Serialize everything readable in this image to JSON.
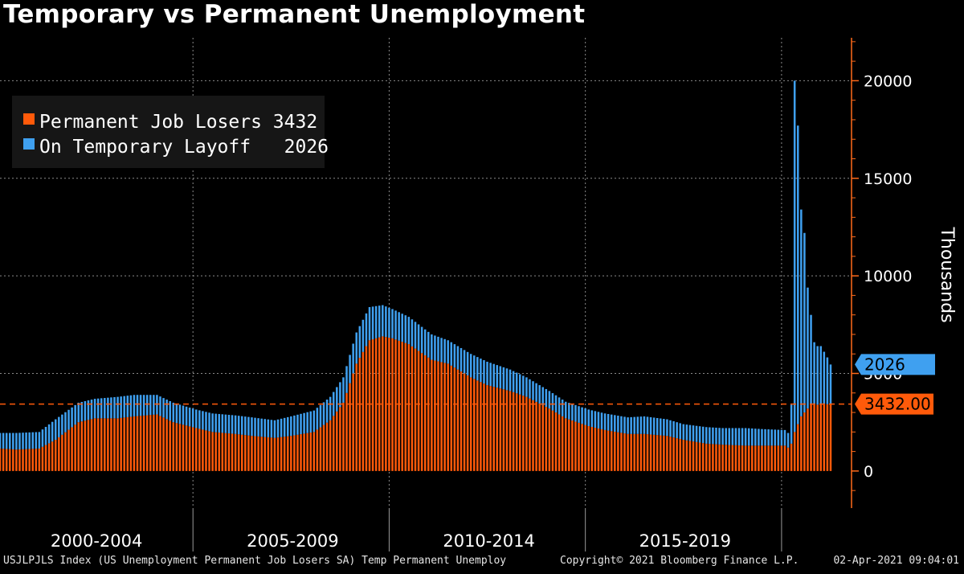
{
  "chart_title": "Temporary vs Permanent Unemployment",
  "footer": {
    "source": "USJLPJLS Index (US Unemployment Permanent Job Losers SA) Temp Permanent Unemploy",
    "copyright": "Copyright© 2021 Bloomberg Finance L.P.",
    "timestamp": "02-Apr-2021 09:04:01"
  },
  "colors": {
    "background": "#000000",
    "permanent": "#ff5a0a",
    "temporary": "#3fa0f0",
    "axis": "#ff6a1a",
    "grid": "#8a8a8a"
  },
  "chart_data": {
    "type": "bar",
    "stacked": true,
    "title": "Temporary vs Permanent Unemployment",
    "ylabel": "Thousands",
    "ylim": [
      -1900,
      22200
    ],
    "yticks": [
      "0",
      "5000",
      "10000",
      "15000",
      "20000"
    ],
    "ytick_values": [
      0,
      5000,
      10000,
      15000,
      20000
    ],
    "grid": true,
    "legend": {
      "position": "top-left",
      "entries": [
        {
          "label": "Permanent Job Losers 3432",
          "color": "#ff5a0a"
        },
        {
          "label": "On Temporary Layoff   2026",
          "color": "#3fa0f0"
        }
      ]
    },
    "x_periods": [
      "2000-2004",
      "2005-2009",
      "2010-2014",
      "2015-2019"
    ],
    "x_start": "2000-01",
    "x_end": "2021-03",
    "last_value_tags": {
      "temporary": "2026",
      "permanent": "3432.00",
      "permanent_reference_line": 3432
    },
    "series": [
      {
        "name": "Permanent Job Losers",
        "color": "#ff5a0a",
        "anchors": [
          [
            "2000-01",
            1150
          ],
          [
            "2000-06",
            1100
          ],
          [
            "2001-01",
            1150
          ],
          [
            "2001-06",
            1600
          ],
          [
            "2002-01",
            2500
          ],
          [
            "2002-06",
            2700
          ],
          [
            "2003-01",
            2700
          ],
          [
            "2003-06",
            2800
          ],
          [
            "2004-01",
            2900
          ],
          [
            "2004-06",
            2500
          ],
          [
            "2005-01",
            2200
          ],
          [
            "2005-06",
            2000
          ],
          [
            "2006-01",
            1900
          ],
          [
            "2006-06",
            1800
          ],
          [
            "2007-01",
            1700
          ],
          [
            "2007-06",
            1800
          ],
          [
            "2008-01",
            2000
          ],
          [
            "2008-06",
            2600
          ],
          [
            "2008-10",
            3500
          ],
          [
            "2009-02",
            5500
          ],
          [
            "2009-06",
            6700
          ],
          [
            "2009-10",
            6900
          ],
          [
            "2010-01",
            6800
          ],
          [
            "2010-06",
            6500
          ],
          [
            "2011-01",
            5700
          ],
          [
            "2011-06",
            5500
          ],
          [
            "2012-01",
            4800
          ],
          [
            "2012-06",
            4400
          ],
          [
            "2013-01",
            4100
          ],
          [
            "2013-06",
            3800
          ],
          [
            "2014-01",
            3200
          ],
          [
            "2014-06",
            2700
          ],
          [
            "2015-01",
            2300
          ],
          [
            "2015-06",
            2100
          ],
          [
            "2016-01",
            1900
          ],
          [
            "2016-06",
            1900
          ],
          [
            "2017-01",
            1800
          ],
          [
            "2017-06",
            1600
          ],
          [
            "2018-01",
            1400
          ],
          [
            "2018-06",
            1350
          ],
          [
            "2019-01",
            1300
          ],
          [
            "2019-06",
            1300
          ],
          [
            "2020-01",
            1300
          ],
          [
            "2020-02",
            1200
          ],
          [
            "2020-03",
            1400
          ],
          [
            "2020-04",
            2000
          ],
          [
            "2020-06",
            2800
          ],
          [
            "2020-09",
            3400
          ],
          [
            "2020-12",
            3400
          ],
          [
            "2021-03",
            3432
          ]
        ]
      },
      {
        "name": "On Temporary Layoff",
        "color": "#3fa0f0",
        "anchors": [
          [
            "2000-01",
            800
          ],
          [
            "2000-06",
            850
          ],
          [
            "2001-01",
            850
          ],
          [
            "2001-06",
            1050
          ],
          [
            "2002-01",
            1000
          ],
          [
            "2002-06",
            1000
          ],
          [
            "2003-01",
            1100
          ],
          [
            "2003-06",
            1100
          ],
          [
            "2004-01",
            1000
          ],
          [
            "2004-06",
            1000
          ],
          [
            "2005-01",
            950
          ],
          [
            "2005-06",
            950
          ],
          [
            "2006-01",
            950
          ],
          [
            "2006-06",
            950
          ],
          [
            "2007-01",
            900
          ],
          [
            "2007-06",
            1000
          ],
          [
            "2008-01",
            1100
          ],
          [
            "2008-06",
            1200
          ],
          [
            "2008-10",
            1300
          ],
          [
            "2009-02",
            1600
          ],
          [
            "2009-06",
            1700
          ],
          [
            "2009-10",
            1600
          ],
          [
            "2010-01",
            1500
          ],
          [
            "2010-06",
            1400
          ],
          [
            "2011-01",
            1300
          ],
          [
            "2011-06",
            1200
          ],
          [
            "2012-01",
            1200
          ],
          [
            "2012-06",
            1200
          ],
          [
            "2013-01",
            1100
          ],
          [
            "2013-06",
            1000
          ],
          [
            "2014-01",
            900
          ],
          [
            "2014-06",
            850
          ],
          [
            "2015-01",
            850
          ],
          [
            "2015-06",
            850
          ],
          [
            "2016-01",
            850
          ],
          [
            "2016-06",
            900
          ],
          [
            "2017-01",
            850
          ],
          [
            "2017-06",
            800
          ],
          [
            "2018-01",
            850
          ],
          [
            "2018-06",
            850
          ],
          [
            "2019-01",
            900
          ],
          [
            "2019-06",
            850
          ],
          [
            "2020-01",
            800
          ],
          [
            "2020-02",
            750
          ],
          [
            "2020-03",
            2000
          ],
          [
            "2020-04",
            18000
          ],
          [
            "2020-05",
            15300
          ],
          [
            "2020-06",
            10600
          ],
          [
            "2020-07",
            9200
          ],
          [
            "2020-08",
            6200
          ],
          [
            "2020-09",
            4600
          ],
          [
            "2020-10",
            3200
          ],
          [
            "2020-11",
            3000
          ],
          [
            "2020-12",
            3000
          ],
          [
            "2021-01",
            2700
          ],
          [
            "2021-02",
            2400
          ],
          [
            "2021-03",
            2026
          ]
        ]
      }
    ]
  }
}
